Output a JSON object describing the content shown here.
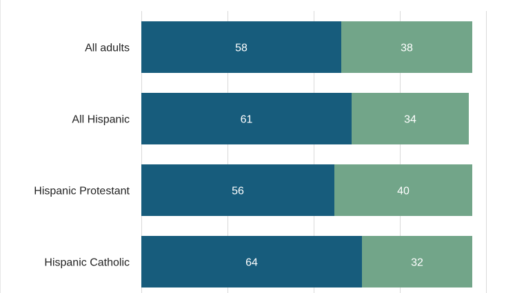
{
  "chart_data": {
    "type": "bar",
    "orientation": "horizontal",
    "stacked": true,
    "categories": [
      "All adults",
      "All Hispanic",
      "Hispanic Protestant",
      "Hispanic Catholic"
    ],
    "series": [
      {
        "values": [
          58,
          61,
          56,
          64
        ],
        "color": "#175c7c"
      },
      {
        "values": [
          38,
          34,
          40,
          32
        ],
        "color": "#72a589"
      }
    ],
    "xlim": [
      0,
      100
    ],
    "grid": true,
    "legend": "none"
  }
}
